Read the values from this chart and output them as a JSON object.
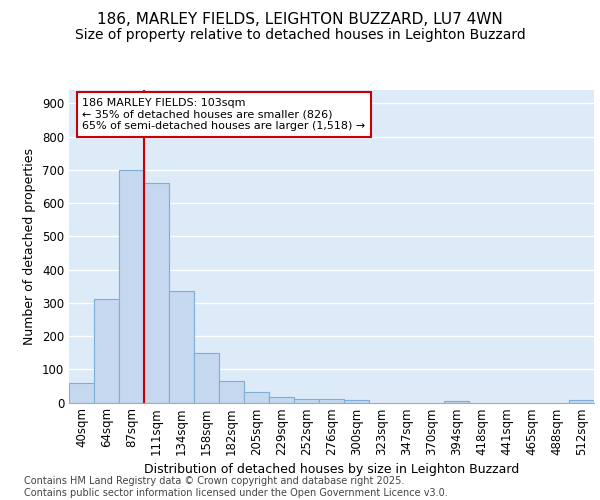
{
  "title1": "186, MARLEY FIELDS, LEIGHTON BUZZARD, LU7 4WN",
  "title2": "Size of property relative to detached houses in Leighton Buzzard",
  "xlabel": "Distribution of detached houses by size in Leighton Buzzard",
  "ylabel": "Number of detached properties",
  "categories": [
    "40sqm",
    "64sqm",
    "87sqm",
    "111sqm",
    "134sqm",
    "158sqm",
    "182sqm",
    "205sqm",
    "229sqm",
    "252sqm",
    "276sqm",
    "300sqm",
    "323sqm",
    "347sqm",
    "370sqm",
    "394sqm",
    "418sqm",
    "441sqm",
    "465sqm",
    "488sqm",
    "512sqm"
  ],
  "values": [
    58,
    312,
    700,
    660,
    335,
    150,
    65,
    33,
    18,
    11,
    11,
    8,
    0,
    0,
    0,
    5,
    0,
    0,
    0,
    0,
    7
  ],
  "bar_color": "#c5d8f0",
  "bar_edge_color": "#7bafd4",
  "vline_color": "#cc0000",
  "vline_index": 2.5,
  "annotation_text": "186 MARLEY FIELDS: 103sqm\n← 35% of detached houses are smaller (826)\n65% of semi-detached houses are larger (1,518) →",
  "ylim": [
    0,
    940
  ],
  "yticks": [
    0,
    100,
    200,
    300,
    400,
    500,
    600,
    700,
    800,
    900
  ],
  "plot_bg_color": "#ddeaf8",
  "fig_bg_color": "#ffffff",
  "grid_color": "#ffffff",
  "footer": "Contains HM Land Registry data © Crown copyright and database right 2025.\nContains public sector information licensed under the Open Government Licence v3.0.",
  "title_fontsize": 11,
  "subtitle_fontsize": 10,
  "axis_label_fontsize": 9,
  "tick_fontsize": 8.5,
  "footer_fontsize": 7
}
